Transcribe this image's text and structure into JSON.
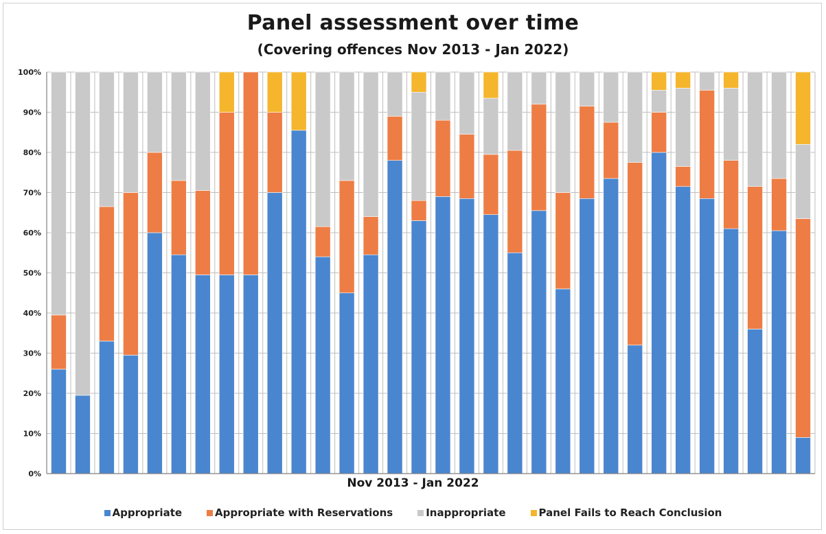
{
  "colors": {
    "appropriate": "#4a86cf",
    "reservations": "#ed7d45",
    "inappropriate": "#c9c9c9",
    "fails": "#f5b52c"
  },
  "chart_data": {
    "type": "bar",
    "stacked": true,
    "title": "Panel assessment over time",
    "subtitle": "(Covering offences Nov 2013 - Jan 2022)",
    "xlabel": "Nov 2013 - Jan 2022",
    "ylabel": "",
    "ylim": [
      0,
      100
    ],
    "y_ticks": [
      "0%",
      "10%",
      "20%",
      "30%",
      "40%",
      "50%",
      "60%",
      "70%",
      "80%",
      "90%",
      "100%"
    ],
    "grid": true,
    "legend_position": "bottom",
    "series": [
      {
        "name": "Appropriate",
        "color_key": "appropriate",
        "values": [
          26,
          19.5,
          33,
          29.5,
          60,
          54.5,
          49.5,
          49.5,
          49.5,
          70,
          85.5,
          54,
          45,
          54.5,
          78,
          63,
          69,
          68.5,
          64.5,
          55,
          65.5,
          46,
          68.5,
          73.5,
          32,
          80,
          71.5,
          68.5,
          61,
          36,
          60.5,
          9
        ]
      },
      {
        "name": "Appropriate with Reservations",
        "color_key": "reservations",
        "values": [
          13.5,
          0,
          33.5,
          40.5,
          20,
          18.5,
          21,
          40.5,
          50.5,
          20,
          0,
          7.5,
          28,
          9.5,
          11,
          5,
          19,
          16,
          15,
          25.5,
          26.5,
          24,
          23,
          14,
          45.5,
          10,
          5,
          27,
          17,
          35.5,
          13,
          54.5
        ]
      },
      {
        "name": "Inappropriate",
        "color_key": "inappropriate",
        "values": [
          60.5,
          80.5,
          33.5,
          30,
          20,
          27,
          29.5,
          0,
          0,
          0,
          0,
          38.5,
          27,
          36,
          11,
          27,
          12,
          15.5,
          14,
          19.5,
          8,
          30,
          8.5,
          12.5,
          22.5,
          5.5,
          19.5,
          4.5,
          18,
          28.5,
          26.5,
          18.5
        ]
      },
      {
        "name": "Panel Fails to Reach Conclusion",
        "color_key": "fails",
        "values": [
          0,
          0,
          0,
          0,
          0,
          0,
          0,
          10,
          0,
          10,
          14.5,
          0,
          0,
          0,
          0,
          5,
          0,
          0,
          6.5,
          0,
          0,
          0,
          0,
          0,
          0,
          4.5,
          4,
          0,
          4,
          0,
          0,
          18
        ]
      }
    ]
  }
}
